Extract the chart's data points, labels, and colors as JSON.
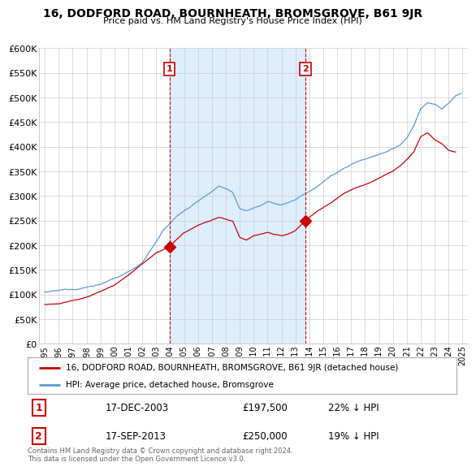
{
  "title": "16, DODFORD ROAD, BOURNHEATH, BROMSGROVE, B61 9JR",
  "subtitle": "Price paid vs. HM Land Registry's House Price Index (HPI)",
  "ylim": [
    0,
    600000
  ],
  "yticks": [
    0,
    50000,
    100000,
    150000,
    200000,
    250000,
    300000,
    350000,
    400000,
    450000,
    500000,
    550000,
    600000
  ],
  "hpi_color": "#5b9bd5",
  "price_color": "#cc0000",
  "shade_color": "#ddeeff",
  "marker1_date_x": 2003.96,
  "marker1_y": 197500,
  "marker2_date_x": 2013.71,
  "marker2_y": 250000,
  "vline1_x": 2003.96,
  "vline2_x": 2013.71,
  "legend_line1": "16, DODFORD ROAD, BOURNHEATH, BROMSGROVE, B61 9JR (detached house)",
  "legend_line2": "HPI: Average price, detached house, Bromsgrove",
  "table_row1": [
    "1",
    "17-DEC-2003",
    "£197,500",
    "22% ↓ HPI"
  ],
  "table_row2": [
    "2",
    "17-SEP-2013",
    "£250,000",
    "19% ↓ HPI"
  ],
  "footnote": "Contains HM Land Registry data © Crown copyright and database right 2024.\nThis data is licensed under the Open Government Licence v3.0.",
  "bg_color": "#ffffff",
  "grid_color": "#cccccc",
  "xlim_left": 1994.6,
  "xlim_right": 2025.4
}
